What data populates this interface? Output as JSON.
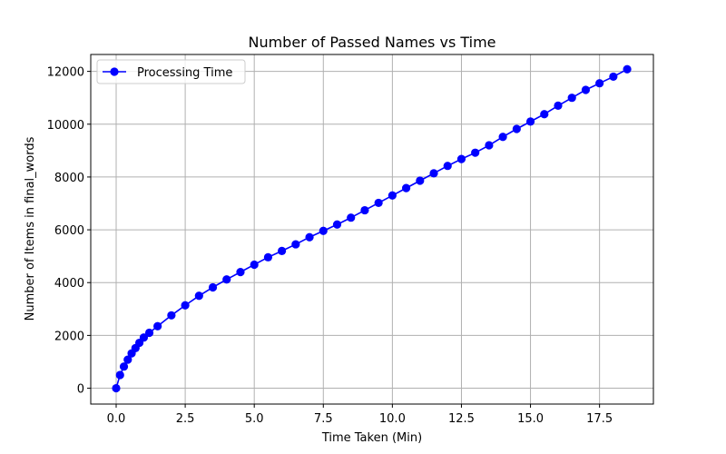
{
  "chart_data": {
    "type": "line",
    "title": "Number of Passed Names vs Time",
    "xlabel": "Time Taken (Min)",
    "ylabel": "Number of Items in final_words",
    "xlim": [
      -0.92,
      19.45
    ],
    "ylim": [
      -600,
      12640
    ],
    "xticks": [
      0.0,
      2.5,
      5.0,
      7.5,
      10.0,
      12.5,
      15.0,
      17.5
    ],
    "xtick_labels": [
      "0.0",
      "2.5",
      "5.0",
      "7.5",
      "10.0",
      "12.5",
      "15.0",
      "17.5"
    ],
    "yticks": [
      0,
      2000,
      4000,
      6000,
      8000,
      10000,
      12000
    ],
    "ytick_labels": [
      "0",
      "2000",
      "4000",
      "6000",
      "8000",
      "10000",
      "12000"
    ],
    "grid": true,
    "legend_position": "top-left",
    "series": [
      {
        "name": "Processing Time",
        "color": "#0000ff",
        "marker": "circle",
        "x": [
          0,
          0.14,
          0.28,
          0.42,
          0.56,
          0.7,
          0.84,
          1.0,
          1.2,
          1.5,
          2.0,
          2.5,
          3.0,
          3.5,
          4.0,
          4.5,
          5.0,
          5.5,
          6.0,
          6.5,
          7.0,
          7.5,
          8.0,
          8.5,
          9.0,
          9.5,
          10.0,
          10.5,
          11.0,
          11.5,
          12.0,
          12.5,
          13.0,
          13.5,
          14.0,
          14.5,
          15.0,
          15.5,
          16.0,
          16.5,
          17.0,
          17.5,
          18.0,
          18.5
        ],
        "y": [
          0,
          500,
          820,
          1080,
          1320,
          1520,
          1720,
          1920,
          2100,
          2350,
          2760,
          3140,
          3500,
          3820,
          4120,
          4400,
          4680,
          4960,
          5200,
          5450,
          5720,
          5960,
          6200,
          6460,
          6740,
          7020,
          7300,
          7580,
          7860,
          8140,
          8420,
          8680,
          8920,
          9200,
          9520,
          9820,
          10100,
          10380,
          10700,
          11000,
          11300,
          11550,
          11800,
          12080
        ]
      }
    ]
  }
}
